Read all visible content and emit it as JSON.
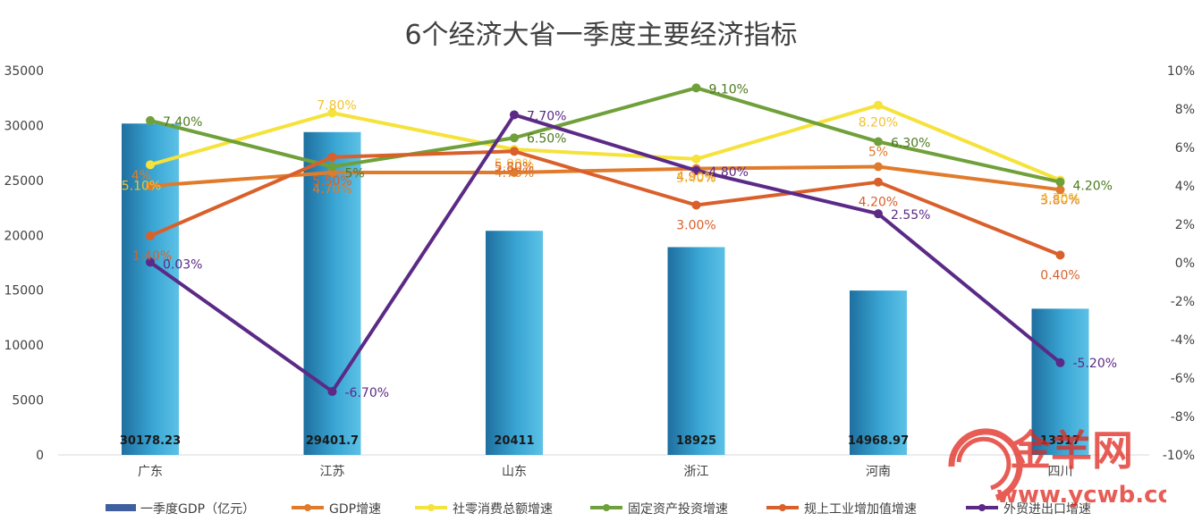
{
  "chart_data": {
    "type": "bar",
    "title": "6个经济大省一季度主要经济指标",
    "categories": [
      "广东",
      "江苏",
      "山东",
      "浙江",
      "河南",
      "四川"
    ],
    "y_left": {
      "ticks": [
        "35000",
        "30000",
        "25000",
        "20000",
        "15000",
        "10000",
        "5000",
        "0"
      ],
      "ylim": [
        0,
        35000
      ]
    },
    "y_right": {
      "ticks": [
        "10%",
        "8%",
        "6%",
        "4%",
        "2%",
        "0%",
        "-2%",
        "-4%",
        "-6%",
        "-8%",
        "-10%"
      ],
      "ylim": [
        -10,
        10
      ]
    },
    "bar_series": {
      "name": "一季度GDP（亿元）",
      "values": [
        30178.23,
        29401.7,
        20411,
        18925,
        14968.97,
        13317
      ],
      "labels": [
        "30178.23",
        "29401.7",
        "20411",
        "18925",
        "14968.97",
        "13317"
      ],
      "color": "#3aa6d4"
    },
    "line_series": [
      {
        "name": "GDP增速",
        "color": "#e07b2c",
        "label_color": "#e07b2c",
        "values": [
          4.0,
          4.7,
          4.7,
          4.9,
          5.0,
          3.8
        ],
        "labels": [
          "4%",
          "4.70%",
          "4.70%",
          "4.90%",
          "5%",
          "3.80%"
        ]
      },
      {
        "name": "社零消费总额增速",
        "color": "#f5e23a",
        "label_color": "#f2c230",
        "values": [
          5.1,
          7.8,
          5.9,
          5.4,
          8.2,
          4.3
        ],
        "labels": [
          "5.10%",
          "7.80%",
          "5.90%",
          "5.40%",
          "8.20%",
          "4.30%"
        ]
      },
      {
        "name": "固定资产投资增速",
        "color": "#70a03a",
        "label_color": "#4d7a1f",
        "values": [
          7.4,
          5.0,
          6.5,
          9.1,
          6.3,
          4.2
        ],
        "labels": [
          "7.40%",
          "5%",
          "6.50%",
          "9.10%",
          "6.30%",
          "4.20%"
        ]
      },
      {
        "name": "规上工业增加值增速",
        "color": "#d9602b",
        "label_color": "#d9602b",
        "values": [
          1.4,
          5.5,
          5.8,
          3.0,
          4.2,
          0.4
        ],
        "labels": [
          "1.40%",
          "5.50%",
          "5.80%",
          "3.00%",
          "4.20%",
          "0.40%"
        ]
      },
      {
        "name": "外贸进出口增速",
        "color": "#5b2a86",
        "label_color": "#5b2a86",
        "values": [
          0.03,
          -6.7,
          7.7,
          4.8,
          2.55,
          -5.2
        ],
        "labels": [
          "0.03%",
          "-6.70%",
          "7.70%",
          "4.80%",
          "2.55%",
          "-5.20%"
        ]
      }
    ],
    "legend_position": "bottom",
    "grid": false
  },
  "watermark": {
    "brand": "金羊网",
    "url": "www.ycwb.com"
  }
}
